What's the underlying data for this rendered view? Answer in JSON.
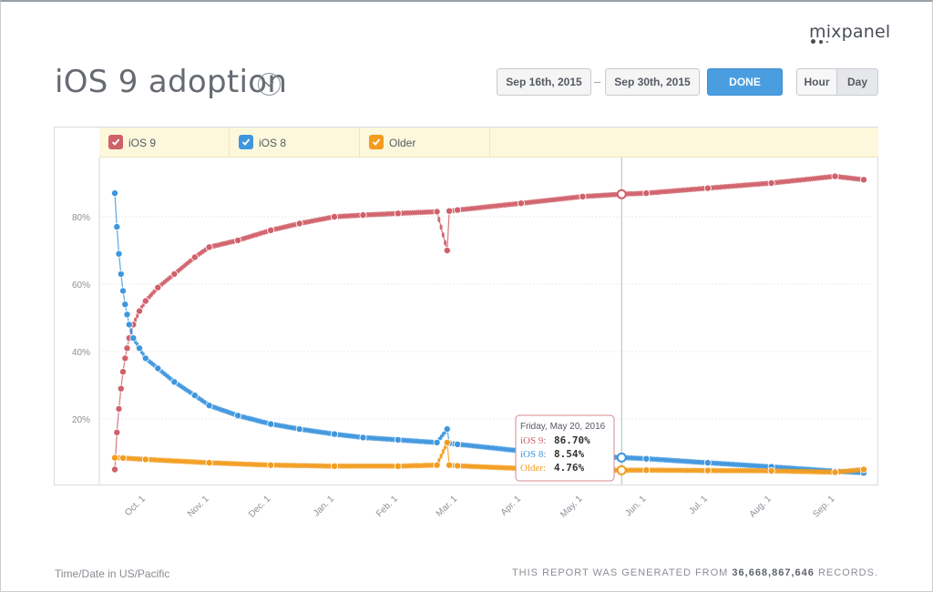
{
  "brand": {
    "name": "mixpanel"
  },
  "header": {
    "title": "iOS 9 adoption",
    "date_from": "Sep 16th, 2015",
    "date_to": "Sep 30th, 2015",
    "date_separator": "–",
    "done_label": "DONE",
    "unit_options": [
      "Hour",
      "Day"
    ],
    "selected_unit": "Day"
  },
  "legend": [
    {
      "label": "iOS 9",
      "color": "#d0606a",
      "checked": true
    },
    {
      "label": "iOS 8",
      "color": "#3e96de",
      "checked": true
    },
    {
      "label": "Older",
      "color": "#f39c1f",
      "checked": true
    }
  ],
  "tooltip": {
    "date": "Friday, May 20, 2016",
    "rows": [
      {
        "label": "iOS 9:",
        "value": "86.70%",
        "color": "#d0606a"
      },
      {
        "label": "iOS 8:",
        "value": "8.54%",
        "color": "#3e96de"
      },
      {
        "label": "Older:",
        "value": "4.76%",
        "color": "#f39c1f"
      }
    ]
  },
  "footer": {
    "timezone_note": "Time/Date in US/Pacific",
    "records_prefix": "THIS REPORT WAS GENERATED FROM",
    "records_count": "36,668,867,646",
    "records_suffix": "RECORDS."
  },
  "chart_data": {
    "type": "line",
    "title": "iOS 9 adoption",
    "xlabel": "",
    "ylabel": "",
    "x_range": [
      "2015-09-16",
      "2016-09-15"
    ],
    "ylim": [
      0,
      100
    ],
    "y_ticks": [
      "20%",
      "40%",
      "60%",
      "80%"
    ],
    "y_tick_values": [
      20,
      40,
      60,
      80
    ],
    "x_tick_labels": [
      "Oct. 1",
      "Nov. 1",
      "Dec. 1",
      "Jan. 1",
      "Feb. 1",
      "Mar. 1",
      "Apr. 1",
      "May. 1",
      "Jun. 1",
      "Jul. 1",
      "Aug. 1",
      "Sep. 1"
    ],
    "x_tick_dates": [
      "2015-10-01",
      "2015-11-01",
      "2015-12-01",
      "2016-01-01",
      "2016-02-01",
      "2016-03-01",
      "2016-04-01",
      "2016-05-01",
      "2016-06-01",
      "2016-07-01",
      "2016-08-01",
      "2016-09-01"
    ],
    "grid": true,
    "legend_position": "top",
    "hover_date": "2016-05-20",
    "series": [
      {
        "name": "iOS 9",
        "color": "#d0606a",
        "points": [
          [
            "2015-09-16",
            5
          ],
          [
            "2015-09-17",
            16
          ],
          [
            "2015-09-18",
            23
          ],
          [
            "2015-09-19",
            29
          ],
          [
            "2015-09-20",
            34
          ],
          [
            "2015-09-21",
            38
          ],
          [
            "2015-09-22",
            41
          ],
          [
            "2015-09-23",
            44
          ],
          [
            "2015-09-25",
            48
          ],
          [
            "2015-09-28",
            52
          ],
          [
            "2015-10-01",
            55
          ],
          [
            "2015-10-07",
            59
          ],
          [
            "2015-10-15",
            63
          ],
          [
            "2015-10-25",
            68
          ],
          [
            "2015-11-01",
            71
          ],
          [
            "2015-11-15",
            73
          ],
          [
            "2015-12-01",
            76
          ],
          [
            "2015-12-15",
            78
          ],
          [
            "2016-01-01",
            80
          ],
          [
            "2016-01-15",
            80.5
          ],
          [
            "2016-02-01",
            81
          ],
          [
            "2016-02-20",
            81.5
          ],
          [
            "2016-02-25",
            70
          ],
          [
            "2016-02-26",
            81.7
          ],
          [
            "2016-03-01",
            82
          ],
          [
            "2016-04-01",
            84
          ],
          [
            "2016-05-01",
            86
          ],
          [
            "2016-05-20",
            86.7
          ],
          [
            "2016-06-01",
            87
          ],
          [
            "2016-07-01",
            88.5
          ],
          [
            "2016-08-01",
            90
          ],
          [
            "2016-09-01",
            92
          ],
          [
            "2016-09-15",
            91
          ]
        ]
      },
      {
        "name": "iOS 8",
        "color": "#3e96de",
        "points": [
          [
            "2015-09-16",
            87
          ],
          [
            "2015-09-17",
            77
          ],
          [
            "2015-09-18",
            69
          ],
          [
            "2015-09-19",
            63
          ],
          [
            "2015-09-20",
            58
          ],
          [
            "2015-09-21",
            54
          ],
          [
            "2015-09-22",
            51
          ],
          [
            "2015-09-23",
            48
          ],
          [
            "2015-09-25",
            44
          ],
          [
            "2015-09-28",
            41
          ],
          [
            "2015-10-01",
            38
          ],
          [
            "2015-10-07",
            35
          ],
          [
            "2015-10-15",
            31
          ],
          [
            "2015-10-25",
            27
          ],
          [
            "2015-11-01",
            24
          ],
          [
            "2015-11-15",
            21
          ],
          [
            "2015-12-01",
            18.5
          ],
          [
            "2015-12-15",
            17
          ],
          [
            "2016-01-01",
            15.5
          ],
          [
            "2016-01-15",
            14.5
          ],
          [
            "2016-02-01",
            13.8
          ],
          [
            "2016-02-20",
            13
          ],
          [
            "2016-02-25",
            17
          ],
          [
            "2016-02-26",
            12.8
          ],
          [
            "2016-03-01",
            12.5
          ],
          [
            "2016-04-01",
            10.5
          ],
          [
            "2016-05-01",
            9.2
          ],
          [
            "2016-05-20",
            8.54
          ],
          [
            "2016-06-01",
            8.2
          ],
          [
            "2016-07-01",
            7
          ],
          [
            "2016-08-01",
            5.8
          ],
          [
            "2016-09-01",
            4.5
          ],
          [
            "2016-09-15",
            4
          ]
        ]
      },
      {
        "name": "Older",
        "color": "#f39c1f",
        "points": [
          [
            "2015-09-16",
            8.5
          ],
          [
            "2015-09-20",
            8.4
          ],
          [
            "2015-10-01",
            8
          ],
          [
            "2015-11-01",
            7
          ],
          [
            "2015-12-01",
            6.3
          ],
          [
            "2016-01-01",
            6
          ],
          [
            "2016-02-01",
            6
          ],
          [
            "2016-02-20",
            6.3
          ],
          [
            "2016-02-25",
            13
          ],
          [
            "2016-02-26",
            6.3
          ],
          [
            "2016-03-01",
            6.1
          ],
          [
            "2016-04-01",
            5.3
          ],
          [
            "2016-05-01",
            5
          ],
          [
            "2016-05-20",
            4.76
          ],
          [
            "2016-06-01",
            4.8
          ],
          [
            "2016-07-01",
            4.7
          ],
          [
            "2016-08-01",
            4.6
          ],
          [
            "2016-09-01",
            4.2
          ],
          [
            "2016-09-15",
            5
          ]
        ]
      }
    ]
  }
}
